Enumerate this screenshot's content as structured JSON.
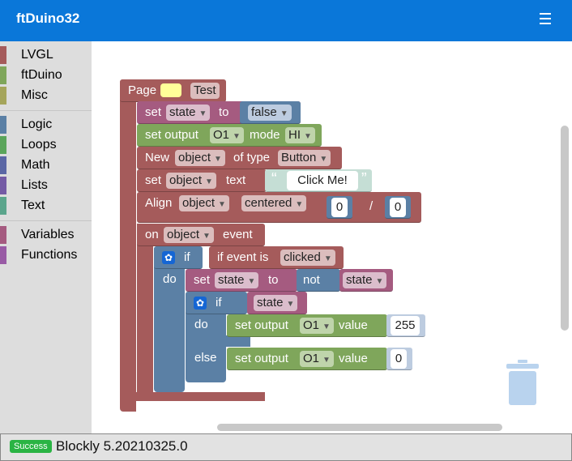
{
  "header": {
    "title": "ftDuino32",
    "menu_icon": "hamburger-menu-icon"
  },
  "toolbox": {
    "group1": [
      {
        "label": "LVGL",
        "color": "#a55b5b"
      },
      {
        "label": "ftDuino",
        "color": "#7fa65b"
      },
      {
        "label": "Misc",
        "color": "#a5a55b"
      }
    ],
    "group2": [
      {
        "label": "Logic",
        "color": "#5b80a5"
      },
      {
        "label": "Loops",
        "color": "#5ba55b"
      },
      {
        "label": "Math",
        "color": "#5b67a5"
      },
      {
        "label": "Lists",
        "color": "#745ba5"
      },
      {
        "label": "Text",
        "color": "#5ba58c"
      }
    ],
    "group3": [
      {
        "label": "Variables",
        "color": "#a55b80"
      },
      {
        "label": "Functions",
        "color": "#995ba5"
      }
    ]
  },
  "blocks": {
    "page": {
      "label": "Page",
      "name": "Test",
      "color_swatch": "#ffff99"
    },
    "set_state": {
      "set": "set",
      "var": "state",
      "to": "to",
      "value": "false"
    },
    "set_output": {
      "label": "set output",
      "port": "O1",
      "mode_label": "mode",
      "mode": "HI"
    },
    "new_object": {
      "new": "New",
      "var": "object",
      "of_type": "of type",
      "type": "Button"
    },
    "set_text": {
      "set": "set",
      "var": "object",
      "text_label": "text",
      "open_quote": "“",
      "value": "Click Me!",
      "close_quote": "”"
    },
    "align": {
      "label": "Align",
      "var": "object",
      "position": "centered",
      "x": "0",
      "sep": "/",
      "y": "0"
    },
    "on_event": {
      "on": "on",
      "var": "object",
      "event": "event"
    },
    "if1": {
      "if": "if",
      "do": "do",
      "cond_label": "if event is",
      "cond_value": "clicked"
    },
    "set_state_not": {
      "set": "set",
      "var": "state",
      "to": "to",
      "not": "not",
      "arg": "state"
    },
    "if2": {
      "if": "if",
      "do": "do",
      "else": "else",
      "cond": "state"
    },
    "out_255": {
      "label": "set output",
      "port": "O1",
      "value_label": "value",
      "value": "255"
    },
    "out_0": {
      "label": "set output",
      "port": "O1",
      "value_label": "value",
      "value": "0"
    }
  },
  "status": {
    "badge": "Success",
    "text": "Blockly 5.20210325.0",
    "badge_color": "#2ab444"
  }
}
